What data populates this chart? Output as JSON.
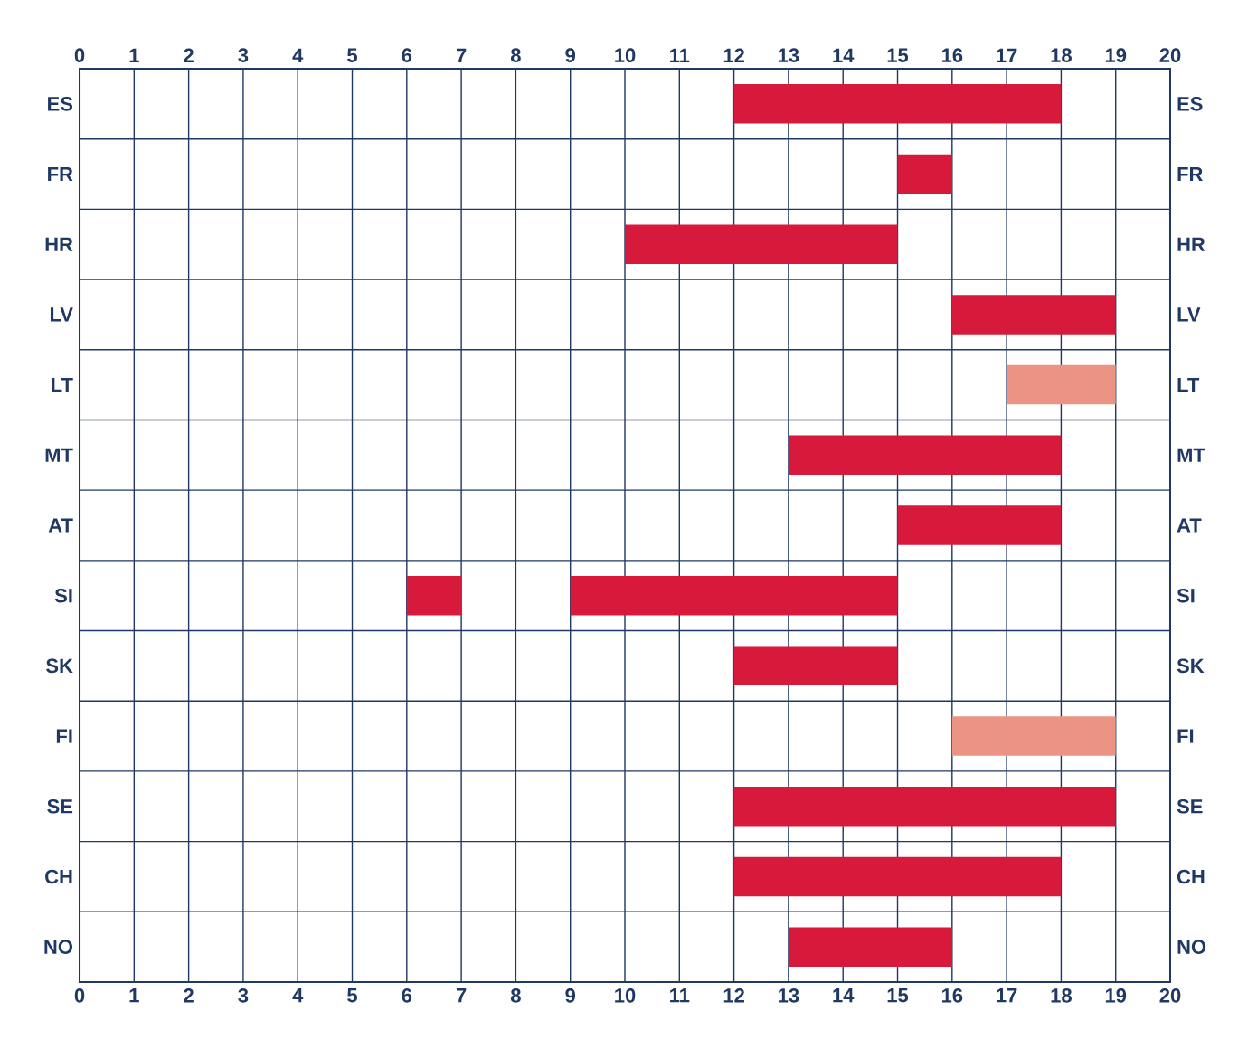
{
  "chart_data": {
    "type": "bar",
    "orientation": "horizontal",
    "categories": [
      "ES",
      "FR",
      "HR",
      "LV",
      "LT",
      "MT",
      "AT",
      "SI",
      "SK",
      "FI",
      "SE",
      "CH",
      "NO"
    ],
    "series": [
      {
        "color": "#d7193c",
        "base": [
          12,
          15,
          10,
          16,
          null,
          13,
          15,
          9,
          12,
          null,
          12,
          12,
          13
        ],
        "values": [
          6,
          1,
          5,
          3,
          null,
          5,
          3,
          6,
          3,
          null,
          7,
          6,
          3
        ]
      },
      {
        "color": "#d7193c",
        "base": [
          null,
          null,
          null,
          null,
          null,
          null,
          null,
          6,
          null,
          null,
          null,
          null,
          null
        ],
        "values": [
          null,
          null,
          null,
          null,
          null,
          null,
          null,
          1,
          null,
          null,
          null,
          null,
          null
        ]
      },
      {
        "color": "#ec9484",
        "base": [
          null,
          null,
          null,
          null,
          17,
          null,
          null,
          null,
          null,
          16,
          null,
          null,
          null
        ],
        "values": [
          null,
          null,
          null,
          null,
          2,
          null,
          null,
          null,
          null,
          3,
          null,
          null,
          null
        ]
      }
    ],
    "xlim": [
      0,
      20
    ],
    "xticks": [
      0,
      1,
      2,
      3,
      4,
      5,
      6,
      7,
      8,
      9,
      10,
      11,
      12,
      13,
      14,
      15,
      16,
      17,
      18,
      19,
      20
    ],
    "x2lim": [
      0,
      20
    ],
    "x2ticks": [
      0,
      1,
      2,
      3,
      4,
      5,
      6,
      7,
      8,
      9,
      10,
      11,
      12,
      13,
      14,
      15,
      16,
      17,
      18,
      19,
      20
    ],
    "grid": true
  }
}
